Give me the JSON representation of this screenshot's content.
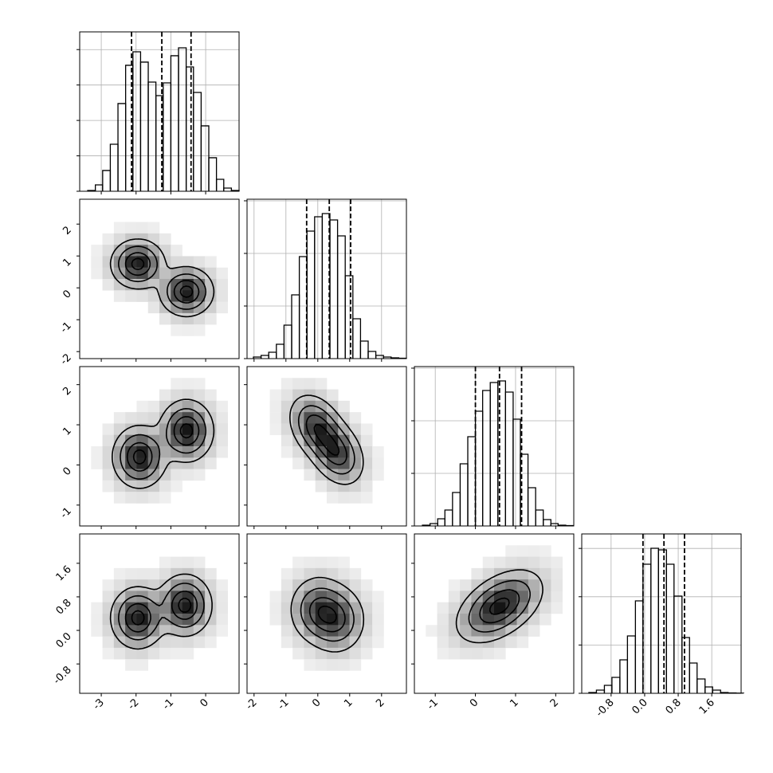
{
  "chart_data": {
    "type": "corner",
    "color": "#000000",
    "grid": true,
    "params": [
      {
        "lim": [
          -3.62,
          0.96
        ],
        "ticks": [
          -3,
          -2,
          -1,
          0
        ]
      },
      {
        "lim": [
          -2.22,
          2.78
        ],
        "ticks": [
          -2,
          -1,
          0,
          1,
          2
        ]
      },
      {
        "lim": [
          -1.52,
          2.45
        ],
        "ticks": [
          -1,
          0,
          1,
          2
        ]
      },
      {
        "lim": [
          -1.5,
          2.3
        ],
        "ticks": [
          -0.8,
          {
            "value": 0,
            "label": "0.0"
          },
          0.8,
          1.6
        ]
      }
    ],
    "histograms": [
      {
        "bins": [
          -3.39,
          -3.17,
          -2.96,
          -2.74,
          -2.52,
          -2.3,
          -2.09,
          -1.87,
          -1.65,
          -1.43,
          -1.22,
          -1.0,
          -0.78,
          -0.56,
          -0.35,
          -0.13,
          0.09,
          0.31,
          0.52,
          0.74,
          0.96
        ],
        "values": [
          11,
          90,
          293,
          664,
          1238,
          1778,
          1969,
          1823,
          1541,
          1350,
          1530,
          1913,
          2025,
          1755,
          1395,
          923,
          473,
          169,
          45,
          11
        ],
        "ylim": [
          0,
          2250
        ],
        "yticks": [
          0,
          500,
          1000,
          1500,
          2000
        ],
        "quantiles": [
          -2.13,
          -1.26,
          -0.42
        ]
      },
      {
        "bins": [
          -2.02,
          -1.78,
          -1.54,
          -1.3,
          -1.06,
          -0.82,
          -0.58,
          -0.34,
          -0.1,
          0.14,
          0.38,
          0.62,
          0.86,
          1.1,
          1.34,
          1.58,
          1.82,
          2.06,
          2.3,
          2.54,
          2.78
        ],
        "values": [
          30,
          61,
          121,
          273,
          636,
          1212,
          1939,
          2424,
          2697,
          2757,
          2636,
          2333,
          1576,
          758,
          333,
          136,
          61,
          30,
          15,
          8
        ],
        "ylim": [
          0,
          3030
        ],
        "yticks": [
          0,
          1000,
          2000,
          3000
        ],
        "quantiles": [
          -0.35,
          0.36,
          1.03
        ]
      },
      {
        "bins": [
          -1.32,
          -1.13,
          -0.94,
          -0.76,
          -0.57,
          -0.38,
          -0.19,
          0.0,
          0.18,
          0.37,
          0.56,
          0.75,
          0.94,
          1.12,
          1.31,
          1.5,
          1.69,
          1.88,
          2.06,
          2.25,
          2.44
        ],
        "values": [
          15,
          45,
          136,
          303,
          636,
          1182,
          1697,
          2182,
          2576,
          2727,
          2757,
          2545,
          2030,
          1364,
          727,
          303,
          121,
          45,
          15,
          8
        ],
        "ylim": [
          0,
          3030
        ],
        "yticks": [
          0,
          1000,
          2000,
          3000
        ],
        "quantiles": [
          0.0,
          0.6,
          1.15
        ]
      },
      {
        "bins": [
          -1.33,
          -1.15,
          -0.96,
          -0.78,
          -0.59,
          -0.41,
          -0.22,
          -0.04,
          0.15,
          0.33,
          0.52,
          0.7,
          0.89,
          1.07,
          1.25,
          1.44,
          1.62,
          1.81,
          1.99,
          2.18,
          2.36
        ],
        "values": [
          17,
          66,
          165,
          330,
          693,
          1188,
          1914,
          2673,
          3003,
          2970,
          2673,
          2013,
          1155,
          627,
          297,
          132,
          66,
          17,
          8,
          4
        ],
        "ylim": [
          0,
          3300
        ],
        "yticks": [
          0,
          1000,
          2000,
          3000
        ],
        "quantiles": [
          -0.04,
          0.46,
          0.95
        ]
      }
    ],
    "contour_levels": [
      0.12,
      0.35,
      0.65,
      0.9
    ],
    "pairs": [
      {
        "x_param": 0,
        "y_param": 1,
        "components": [
          {
            "x": -1.95,
            "y": 0.75,
            "sx": 0.38,
            "sy": 0.38,
            "rho": 0,
            "w": 1
          },
          {
            "x": -0.55,
            "y": -0.12,
            "sx": 0.38,
            "sy": 0.38,
            "rho": 0,
            "w": 1
          }
        ]
      },
      {
        "x_param": 0,
        "y_param": 2,
        "components": [
          {
            "x": -1.9,
            "y": 0.2,
            "sx": 0.38,
            "sy": 0.38,
            "rho": 0,
            "w": 1
          },
          {
            "x": -0.55,
            "y": 0.85,
            "sx": 0.38,
            "sy": 0.38,
            "rho": 0,
            "w": 1
          }
        ]
      },
      {
        "x_param": 0,
        "y_param": 3,
        "components": [
          {
            "x": -1.95,
            "y": 0.3,
            "sx": 0.38,
            "sy": 0.36,
            "rho": 0,
            "w": 1
          },
          {
            "x": -0.6,
            "y": 0.6,
            "sx": 0.38,
            "sy": 0.36,
            "rho": 0,
            "w": 1
          }
        ]
      },
      {
        "x_param": 1,
        "y_param": 2,
        "components": [
          {
            "x": -0.05,
            "y": 0.95,
            "sx": 0.42,
            "sy": 0.4,
            "rho": -0.3,
            "w": 1
          },
          {
            "x": 0.6,
            "y": 0.3,
            "sx": 0.42,
            "sy": 0.4,
            "rho": -0.3,
            "w": 1
          }
        ]
      },
      {
        "x_param": 1,
        "y_param": 3,
        "components": [
          {
            "x": 0.0,
            "y": 0.5,
            "sx": 0.45,
            "sy": 0.4,
            "rho": 0,
            "w": 1
          },
          {
            "x": 0.6,
            "y": 0.25,
            "sx": 0.45,
            "sy": 0.4,
            "rho": 0,
            "w": 1
          }
        ]
      },
      {
        "x_param": 2,
        "y_param": 3,
        "components": [
          {
            "x": 0.4,
            "y": 0.45,
            "sx": 0.48,
            "sy": 0.4,
            "rho": 0.4,
            "w": 1
          },
          {
            "x": 0.8,
            "y": 0.7,
            "sx": 0.48,
            "sy": 0.4,
            "rho": 0.4,
            "w": 1
          }
        ]
      }
    ]
  }
}
